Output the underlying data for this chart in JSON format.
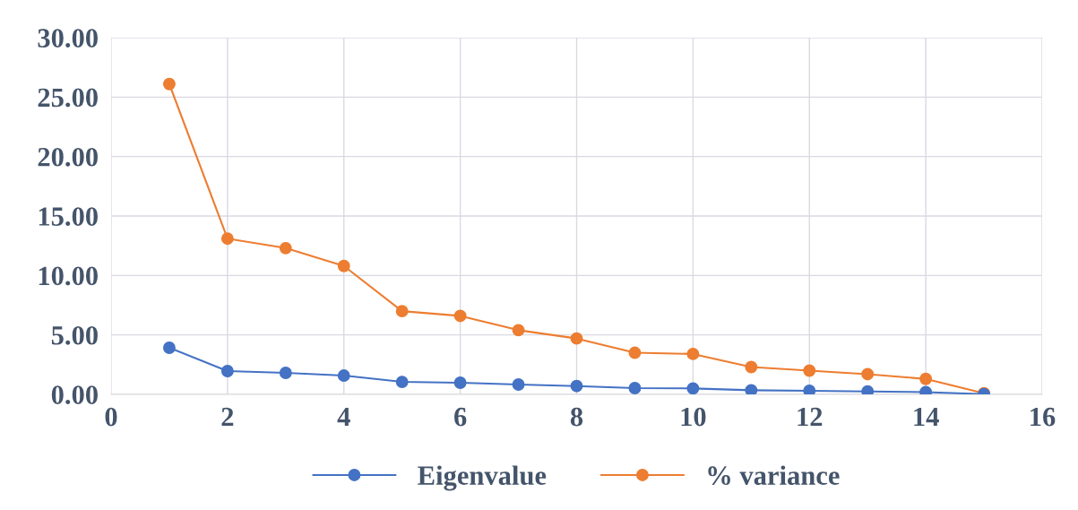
{
  "chart_data": {
    "type": "line",
    "x": [
      1,
      2,
      3,
      4,
      5,
      6,
      7,
      8,
      9,
      10,
      11,
      12,
      13,
      14,
      15
    ],
    "series": [
      {
        "name": "Eigenvalue",
        "color": "#4472c4",
        "values": [
          3.92,
          1.96,
          1.81,
          1.58,
          1.05,
          0.98,
          0.83,
          0.7,
          0.53,
          0.5,
          0.35,
          0.3,
          0.25,
          0.19,
          0.02
        ]
      },
      {
        "name": "% variance",
        "color": "#ed7d31",
        "values": [
          26.1,
          13.1,
          12.3,
          10.8,
          7.0,
          6.6,
          5.4,
          4.7,
          3.5,
          3.4,
          2.3,
          2.0,
          1.7,
          1.3,
          0.1
        ]
      }
    ],
    "xlim": [
      0,
      16
    ],
    "xticks": [
      0,
      2,
      4,
      6,
      8,
      10,
      12,
      14,
      16
    ],
    "ylim": [
      0,
      30
    ],
    "yticks": [
      {
        "value": 0,
        "label": "0.00"
      },
      {
        "value": 5,
        "label": "5.00"
      },
      {
        "value": 10,
        "label": "10.00"
      },
      {
        "value": 15,
        "label": "15.00"
      },
      {
        "value": 20,
        "label": "20.00"
      },
      {
        "value": 25,
        "label": "25.00"
      },
      {
        "value": 30,
        "label": "30.00"
      }
    ],
    "grid": true,
    "legend": "bottom",
    "marker": "circle",
    "line_style": "solid"
  }
}
